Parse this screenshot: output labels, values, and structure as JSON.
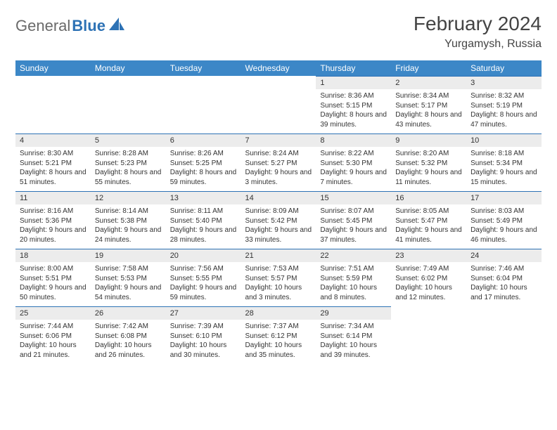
{
  "brand": {
    "part1": "General",
    "part2": "Blue"
  },
  "title": "February 2024",
  "location": "Yurgamysh, Russia",
  "colors": {
    "header_bg": "#3c87c7",
    "daynum_bg": "#ececec",
    "day_border_top": "#2d72b5",
    "text": "#333333",
    "brand_gray": "#6a6a6a",
    "brand_blue": "#2d72b5",
    "background": "#ffffff"
  },
  "typography": {
    "title_fontsize": 28,
    "location_fontsize": 16,
    "weekday_fontsize": 12,
    "daynum_fontsize": 11,
    "cell_fontsize": 10
  },
  "weekdays": [
    "Sunday",
    "Monday",
    "Tuesday",
    "Wednesday",
    "Thursday",
    "Friday",
    "Saturday"
  ],
  "weeks": [
    [
      null,
      null,
      null,
      null,
      {
        "n": "1",
        "sunrise": "Sunrise: 8:36 AM",
        "sunset": "Sunset: 5:15 PM",
        "daylight": "Daylight: 8 hours and 39 minutes."
      },
      {
        "n": "2",
        "sunrise": "Sunrise: 8:34 AM",
        "sunset": "Sunset: 5:17 PM",
        "daylight": "Daylight: 8 hours and 43 minutes."
      },
      {
        "n": "3",
        "sunrise": "Sunrise: 8:32 AM",
        "sunset": "Sunset: 5:19 PM",
        "daylight": "Daylight: 8 hours and 47 minutes."
      }
    ],
    [
      {
        "n": "4",
        "sunrise": "Sunrise: 8:30 AM",
        "sunset": "Sunset: 5:21 PM",
        "daylight": "Daylight: 8 hours and 51 minutes."
      },
      {
        "n": "5",
        "sunrise": "Sunrise: 8:28 AM",
        "sunset": "Sunset: 5:23 PM",
        "daylight": "Daylight: 8 hours and 55 minutes."
      },
      {
        "n": "6",
        "sunrise": "Sunrise: 8:26 AM",
        "sunset": "Sunset: 5:25 PM",
        "daylight": "Daylight: 8 hours and 59 minutes."
      },
      {
        "n": "7",
        "sunrise": "Sunrise: 8:24 AM",
        "sunset": "Sunset: 5:27 PM",
        "daylight": "Daylight: 9 hours and 3 minutes."
      },
      {
        "n": "8",
        "sunrise": "Sunrise: 8:22 AM",
        "sunset": "Sunset: 5:30 PM",
        "daylight": "Daylight: 9 hours and 7 minutes."
      },
      {
        "n": "9",
        "sunrise": "Sunrise: 8:20 AM",
        "sunset": "Sunset: 5:32 PM",
        "daylight": "Daylight: 9 hours and 11 minutes."
      },
      {
        "n": "10",
        "sunrise": "Sunrise: 8:18 AM",
        "sunset": "Sunset: 5:34 PM",
        "daylight": "Daylight: 9 hours and 15 minutes."
      }
    ],
    [
      {
        "n": "11",
        "sunrise": "Sunrise: 8:16 AM",
        "sunset": "Sunset: 5:36 PM",
        "daylight": "Daylight: 9 hours and 20 minutes."
      },
      {
        "n": "12",
        "sunrise": "Sunrise: 8:14 AM",
        "sunset": "Sunset: 5:38 PM",
        "daylight": "Daylight: 9 hours and 24 minutes."
      },
      {
        "n": "13",
        "sunrise": "Sunrise: 8:11 AM",
        "sunset": "Sunset: 5:40 PM",
        "daylight": "Daylight: 9 hours and 28 minutes."
      },
      {
        "n": "14",
        "sunrise": "Sunrise: 8:09 AM",
        "sunset": "Sunset: 5:42 PM",
        "daylight": "Daylight: 9 hours and 33 minutes."
      },
      {
        "n": "15",
        "sunrise": "Sunrise: 8:07 AM",
        "sunset": "Sunset: 5:45 PM",
        "daylight": "Daylight: 9 hours and 37 minutes."
      },
      {
        "n": "16",
        "sunrise": "Sunrise: 8:05 AM",
        "sunset": "Sunset: 5:47 PM",
        "daylight": "Daylight: 9 hours and 41 minutes."
      },
      {
        "n": "17",
        "sunrise": "Sunrise: 8:03 AM",
        "sunset": "Sunset: 5:49 PM",
        "daylight": "Daylight: 9 hours and 46 minutes."
      }
    ],
    [
      {
        "n": "18",
        "sunrise": "Sunrise: 8:00 AM",
        "sunset": "Sunset: 5:51 PM",
        "daylight": "Daylight: 9 hours and 50 minutes."
      },
      {
        "n": "19",
        "sunrise": "Sunrise: 7:58 AM",
        "sunset": "Sunset: 5:53 PM",
        "daylight": "Daylight: 9 hours and 54 minutes."
      },
      {
        "n": "20",
        "sunrise": "Sunrise: 7:56 AM",
        "sunset": "Sunset: 5:55 PM",
        "daylight": "Daylight: 9 hours and 59 minutes."
      },
      {
        "n": "21",
        "sunrise": "Sunrise: 7:53 AM",
        "sunset": "Sunset: 5:57 PM",
        "daylight": "Daylight: 10 hours and 3 minutes."
      },
      {
        "n": "22",
        "sunrise": "Sunrise: 7:51 AM",
        "sunset": "Sunset: 5:59 PM",
        "daylight": "Daylight: 10 hours and 8 minutes."
      },
      {
        "n": "23",
        "sunrise": "Sunrise: 7:49 AM",
        "sunset": "Sunset: 6:02 PM",
        "daylight": "Daylight: 10 hours and 12 minutes."
      },
      {
        "n": "24",
        "sunrise": "Sunrise: 7:46 AM",
        "sunset": "Sunset: 6:04 PM",
        "daylight": "Daylight: 10 hours and 17 minutes."
      }
    ],
    [
      {
        "n": "25",
        "sunrise": "Sunrise: 7:44 AM",
        "sunset": "Sunset: 6:06 PM",
        "daylight": "Daylight: 10 hours and 21 minutes."
      },
      {
        "n": "26",
        "sunrise": "Sunrise: 7:42 AM",
        "sunset": "Sunset: 6:08 PM",
        "daylight": "Daylight: 10 hours and 26 minutes."
      },
      {
        "n": "27",
        "sunrise": "Sunrise: 7:39 AM",
        "sunset": "Sunset: 6:10 PM",
        "daylight": "Daylight: 10 hours and 30 minutes."
      },
      {
        "n": "28",
        "sunrise": "Sunrise: 7:37 AM",
        "sunset": "Sunset: 6:12 PM",
        "daylight": "Daylight: 10 hours and 35 minutes."
      },
      {
        "n": "29",
        "sunrise": "Sunrise: 7:34 AM",
        "sunset": "Sunset: 6:14 PM",
        "daylight": "Daylight: 10 hours and 39 minutes."
      },
      null,
      null
    ]
  ]
}
